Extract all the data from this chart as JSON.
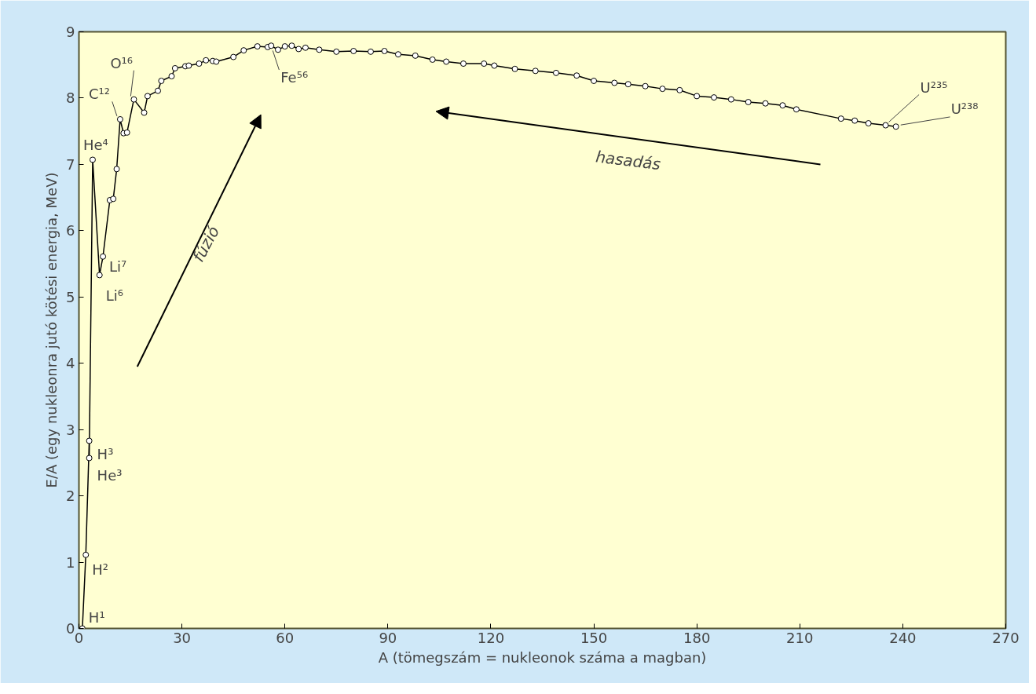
{
  "chart_data": {
    "type": "line",
    "xlabel": "A (tömegszám = nukleonok száma a magban)",
    "ylabel": "E/A (egy nukleonra jutó kötési energia, MeV)",
    "x": [
      1,
      2,
      3,
      3,
      4,
      6,
      7,
      9,
      10,
      11,
      12,
      13,
      14,
      16,
      19,
      20,
      23,
      24,
      27,
      28,
      31,
      32,
      35,
      37,
      39,
      40,
      45,
      48,
      52,
      55,
      56,
      58,
      60,
      62,
      64,
      66,
      70,
      75,
      80,
      85,
      89,
      93,
      98,
      103,
      107,
      112,
      118,
      121,
      127,
      133,
      139,
      145,
      150,
      156,
      160,
      165,
      170,
      175,
      180,
      185,
      190,
      195,
      200,
      205,
      209,
      222,
      226,
      230,
      235,
      238
    ],
    "series": [
      {
        "color": "#000000",
        "values": [
          0,
          1.11,
          2.83,
          2.57,
          7.07,
          5.33,
          5.61,
          6.46,
          6.48,
          6.93,
          7.68,
          7.47,
          7.48,
          7.98,
          7.78,
          8.03,
          8.11,
          8.26,
          8.33,
          8.45,
          8.48,
          8.49,
          8.52,
          8.57,
          8.56,
          8.55,
          8.62,
          8.72,
          8.78,
          8.77,
          8.79,
          8.73,
          8.78,
          8.79,
          8.74,
          8.76,
          8.73,
          8.7,
          8.71,
          8.7,
          8.71,
          8.66,
          8.64,
          8.58,
          8.55,
          8.52,
          8.52,
          8.49,
          8.44,
          8.41,
          8.38,
          8.34,
          8.26,
          8.23,
          8.21,
          8.18,
          8.14,
          8.12,
          8.03,
          8.01,
          7.98,
          7.94,
          7.92,
          7.89,
          7.83,
          7.69,
          7.66,
          7.62,
          7.59,
          7.57
        ]
      }
    ],
    "marker": "circle",
    "line_style": "solid",
    "grid": false,
    "xlim": [
      0,
      270
    ],
    "xticks": [
      0,
      30,
      60,
      90,
      120,
      150,
      180,
      210,
      240,
      270
    ],
    "ylim": [
      0,
      9
    ],
    "yticks": [
      0,
      1,
      2,
      3,
      4,
      5,
      6,
      7,
      8,
      9
    ],
    "annotations": [
      {
        "text": "H¹",
        "x": 1,
        "y": 0
      },
      {
        "text": "H²",
        "x": 2,
        "y": 1.11
      },
      {
        "text": "H³",
        "x": 3,
        "y": 2.83
      },
      {
        "text": "He³",
        "x": 3,
        "y": 2.57
      },
      {
        "text": "He⁴",
        "x": 4,
        "y": 7.07
      },
      {
        "text": "Li⁶",
        "x": 6,
        "y": 5.33
      },
      {
        "text": "Li⁷",
        "x": 7,
        "y": 5.61
      },
      {
        "text": "C¹²",
        "x": 12,
        "y": 7.68
      },
      {
        "text": "O¹⁶",
        "x": 16,
        "y": 7.98
      },
      {
        "text": "Fe⁵⁶",
        "x": 56,
        "y": 8.79
      },
      {
        "text": "U²³⁵",
        "x": 235,
        "y": 7.59
      },
      {
        "text": "U²³⁸",
        "x": 238,
        "y": 7.57
      },
      "fúzió",
      "hasadás"
    ]
  }
}
